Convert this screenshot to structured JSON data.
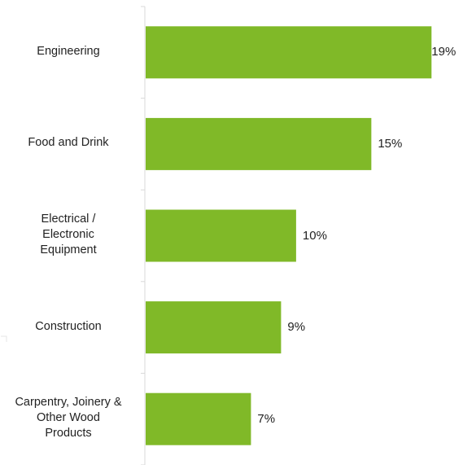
{
  "chart_data": {
    "type": "bar",
    "orientation": "horizontal",
    "categories": [
      "Engineering",
      "Food and Drink",
      "Electrical /\nElectronic\nEquipment",
      "Construction",
      "Carpentry, Joinery &\nOther Wood\nProducts"
    ],
    "values": [
      19,
      15,
      10,
      9,
      7
    ],
    "value_labels": [
      "19%",
      "15%",
      "10%",
      "9%",
      "7%"
    ],
    "unit": "%",
    "xlim": [
      0,
      19.2
    ],
    "title": "",
    "xlabel": "",
    "ylabel": "",
    "grid": false,
    "legend": "none",
    "bar_color": "#80b928",
    "axis_color": "#d9d9d9"
  }
}
